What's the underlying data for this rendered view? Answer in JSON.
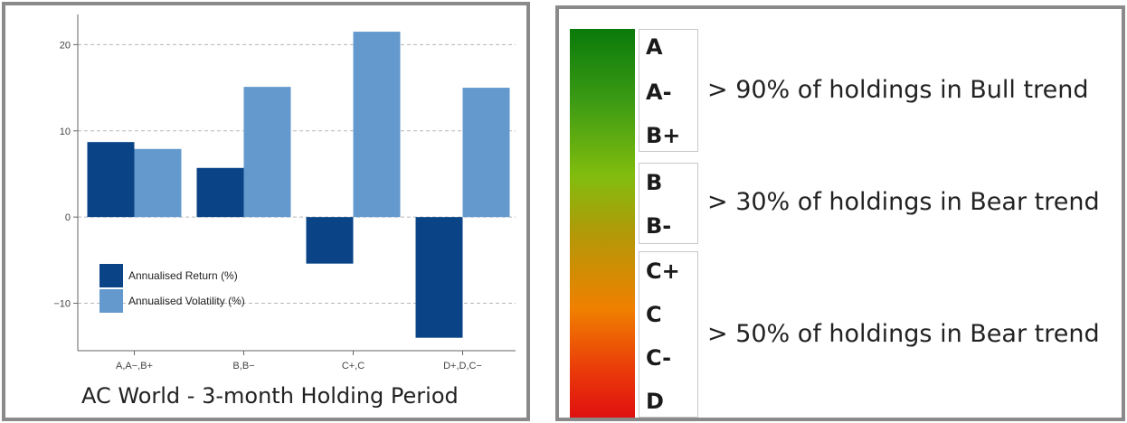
{
  "chart_data": {
    "type": "bar",
    "categories": [
      "A,A−,B+",
      "B,B−",
      "C+,C",
      "D+,D,C−"
    ],
    "series": [
      {
        "name": "Annualised Return (%)",
        "color": "#0a4487",
        "values": [
          8.7,
          5.7,
          -5.4,
          -14.0
        ]
      },
      {
        "name": "Annualised Volatility (%)",
        "color": "#6399cd",
        "values": [
          7.9,
          15.1,
          21.5,
          15.0
        ]
      }
    ],
    "y_ticks": [
      20,
      10,
      0,
      -10
    ],
    "y_tick_labels": [
      "20",
      "10",
      "0",
      "−10"
    ],
    "ylim": [
      -15.5,
      23.5
    ],
    "grid": "horizontal dashed",
    "legend_placement": "bottom-left",
    "title": "AC World - 3-month Holding Period",
    "xlabel": "",
    "ylabel": ""
  },
  "scale": {
    "groups": [
      {
        "grades": [
          "A",
          "A-",
          "B+"
        ],
        "description": "> 90% of holdings in Bull trend"
      },
      {
        "grades": [
          "B",
          "B-"
        ],
        "description": "> 30% of holdings in Bear trend"
      },
      {
        "grades": [
          "C+",
          "C",
          "C-",
          "D"
        ],
        "description": "> 50% of holdings in Bear trend"
      }
    ],
    "gradient_colors": [
      "#0a7a0a",
      "#82bd0e",
      "#f08000",
      "#e01010"
    ]
  }
}
